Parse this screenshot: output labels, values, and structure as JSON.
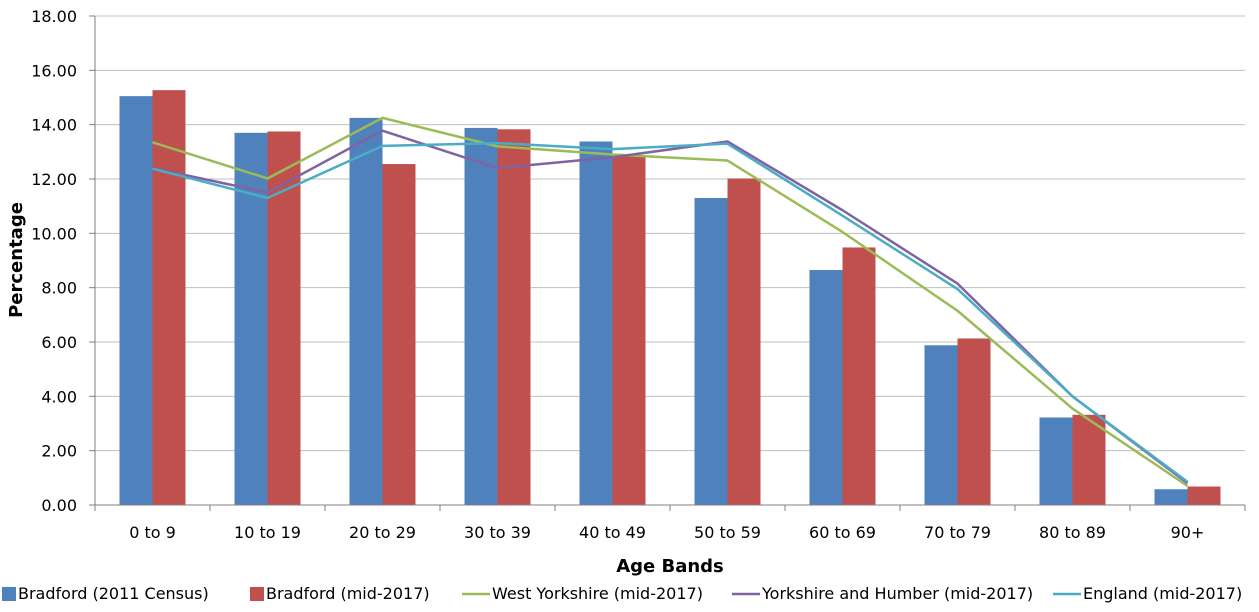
{
  "chart_data": {
    "type": "bar",
    "title": "",
    "xlabel": "Age Bands",
    "ylabel": "Percentage",
    "ylim": [
      0,
      18
    ],
    "yticks": [
      "0.00",
      "2.00",
      "4.00",
      "6.00",
      "8.00",
      "10.00",
      "12.00",
      "14.00",
      "16.00",
      "18.00"
    ],
    "grid": "horizontal",
    "legend_position": "bottom",
    "categories": [
      "0 to 9",
      "10 to 19",
      "20 to 29",
      "30 to 39",
      "40 to 49",
      "50 to 59",
      "60 to 69",
      "70 to 79",
      "80 to 89",
      "90+"
    ],
    "series": [
      {
        "name": "Bradford (2011 Census)",
        "type": "bar",
        "color": "#4f81bd",
        "values": [
          15.05,
          13.7,
          14.25,
          13.88,
          13.38,
          11.3,
          8.65,
          5.88,
          3.22,
          0.58
        ]
      },
      {
        "name": "Bradford (mid-2017)",
        "type": "bar",
        "color": "#c0504d",
        "values": [
          15.27,
          13.75,
          12.55,
          13.83,
          12.85,
          12.02,
          9.48,
          6.13,
          3.32,
          0.68
        ]
      },
      {
        "name": "West Yorkshire (mid-2017)",
        "type": "line",
        "color": "#9bbb59",
        "values": [
          13.35,
          12.02,
          14.25,
          13.2,
          12.9,
          12.68,
          10.05,
          7.15,
          3.55,
          0.7
        ]
      },
      {
        "name": "Yorkshire and Humber (mid-2017)",
        "type": "line",
        "color": "#8064a2",
        "values": [
          12.4,
          11.5,
          13.78,
          12.4,
          12.8,
          13.38,
          10.85,
          8.15,
          4.0,
          0.8
        ]
      },
      {
        "name": "England (mid-2017)",
        "type": "line",
        "color": "#4bacc6",
        "values": [
          12.38,
          11.3,
          13.22,
          13.32,
          13.1,
          13.3,
          10.65,
          7.95,
          4.0,
          0.85
        ]
      }
    ]
  }
}
